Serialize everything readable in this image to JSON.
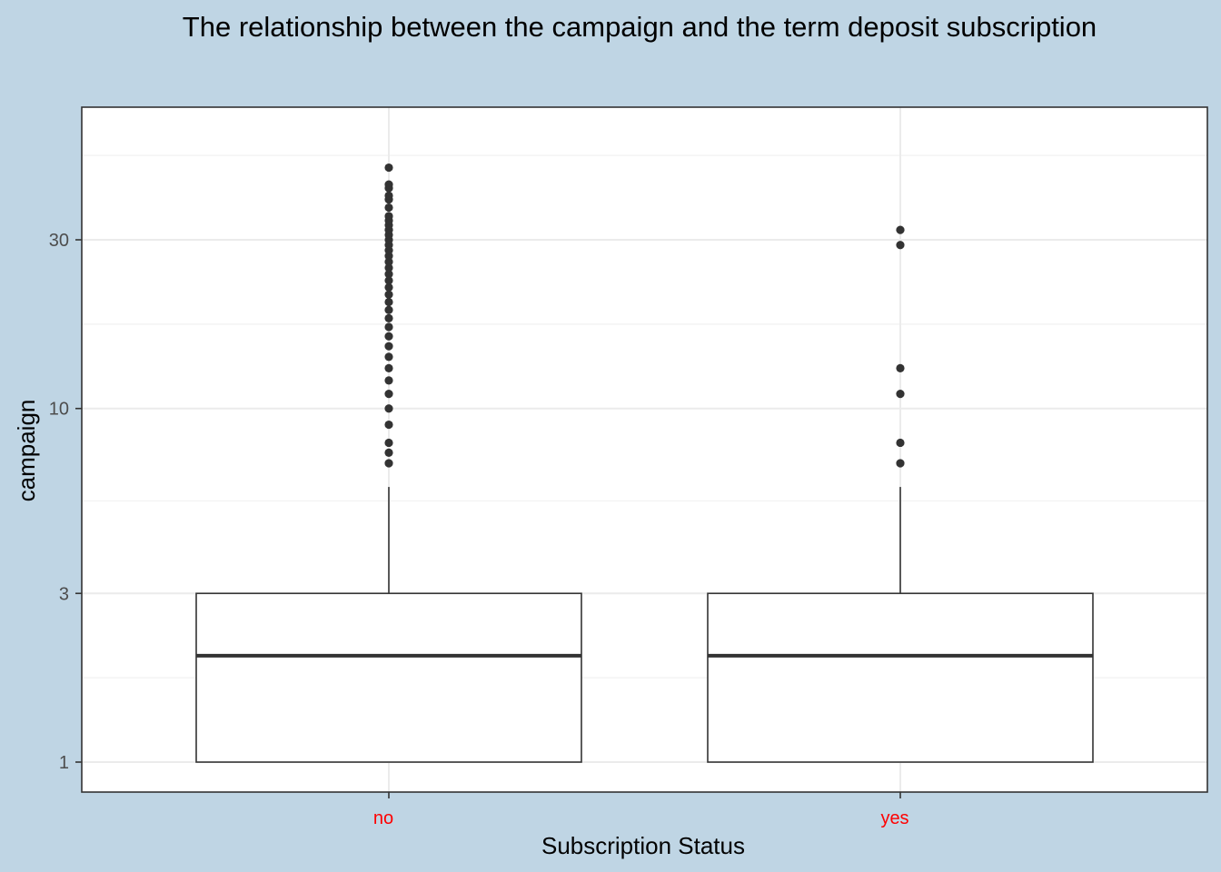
{
  "chart_data": {
    "type": "boxplot",
    "title": "The relationship between the campaign and the term deposit subscription",
    "xlabel": "Subscription Status",
    "ylabel": "campaign",
    "y_scale": "log10",
    "ylim": [
      0.8,
      56
    ],
    "y_ticks": [
      1,
      3,
      10,
      30
    ],
    "y_tick_labels": [
      "1",
      "3",
      "10",
      "30"
    ],
    "categories": [
      "no",
      "yes"
    ],
    "category_label_color": "#ff0000",
    "grid": true,
    "background": "#bfd5e4",
    "panel_background": "#ffffff",
    "boxes": [
      {
        "category": "no",
        "min": 1,
        "q1": 1,
        "median": 2,
        "q3": 3,
        "whisker_high": 6,
        "outliers": [
          7,
          7.5,
          8,
          9,
          10,
          11,
          12,
          13,
          14,
          15,
          16,
          17,
          18,
          19,
          20,
          21,
          22,
          23,
          24,
          25,
          26,
          27,
          28,
          29,
          30,
          31,
          32,
          33,
          34,
          35,
          37,
          39,
          40,
          42,
          43,
          48
        ]
      },
      {
        "category": "yes",
        "min": 1,
        "q1": 1,
        "median": 2,
        "q3": 3,
        "whisker_high": 6,
        "outliers": [
          7,
          8,
          11,
          13,
          29,
          32
        ]
      }
    ]
  }
}
